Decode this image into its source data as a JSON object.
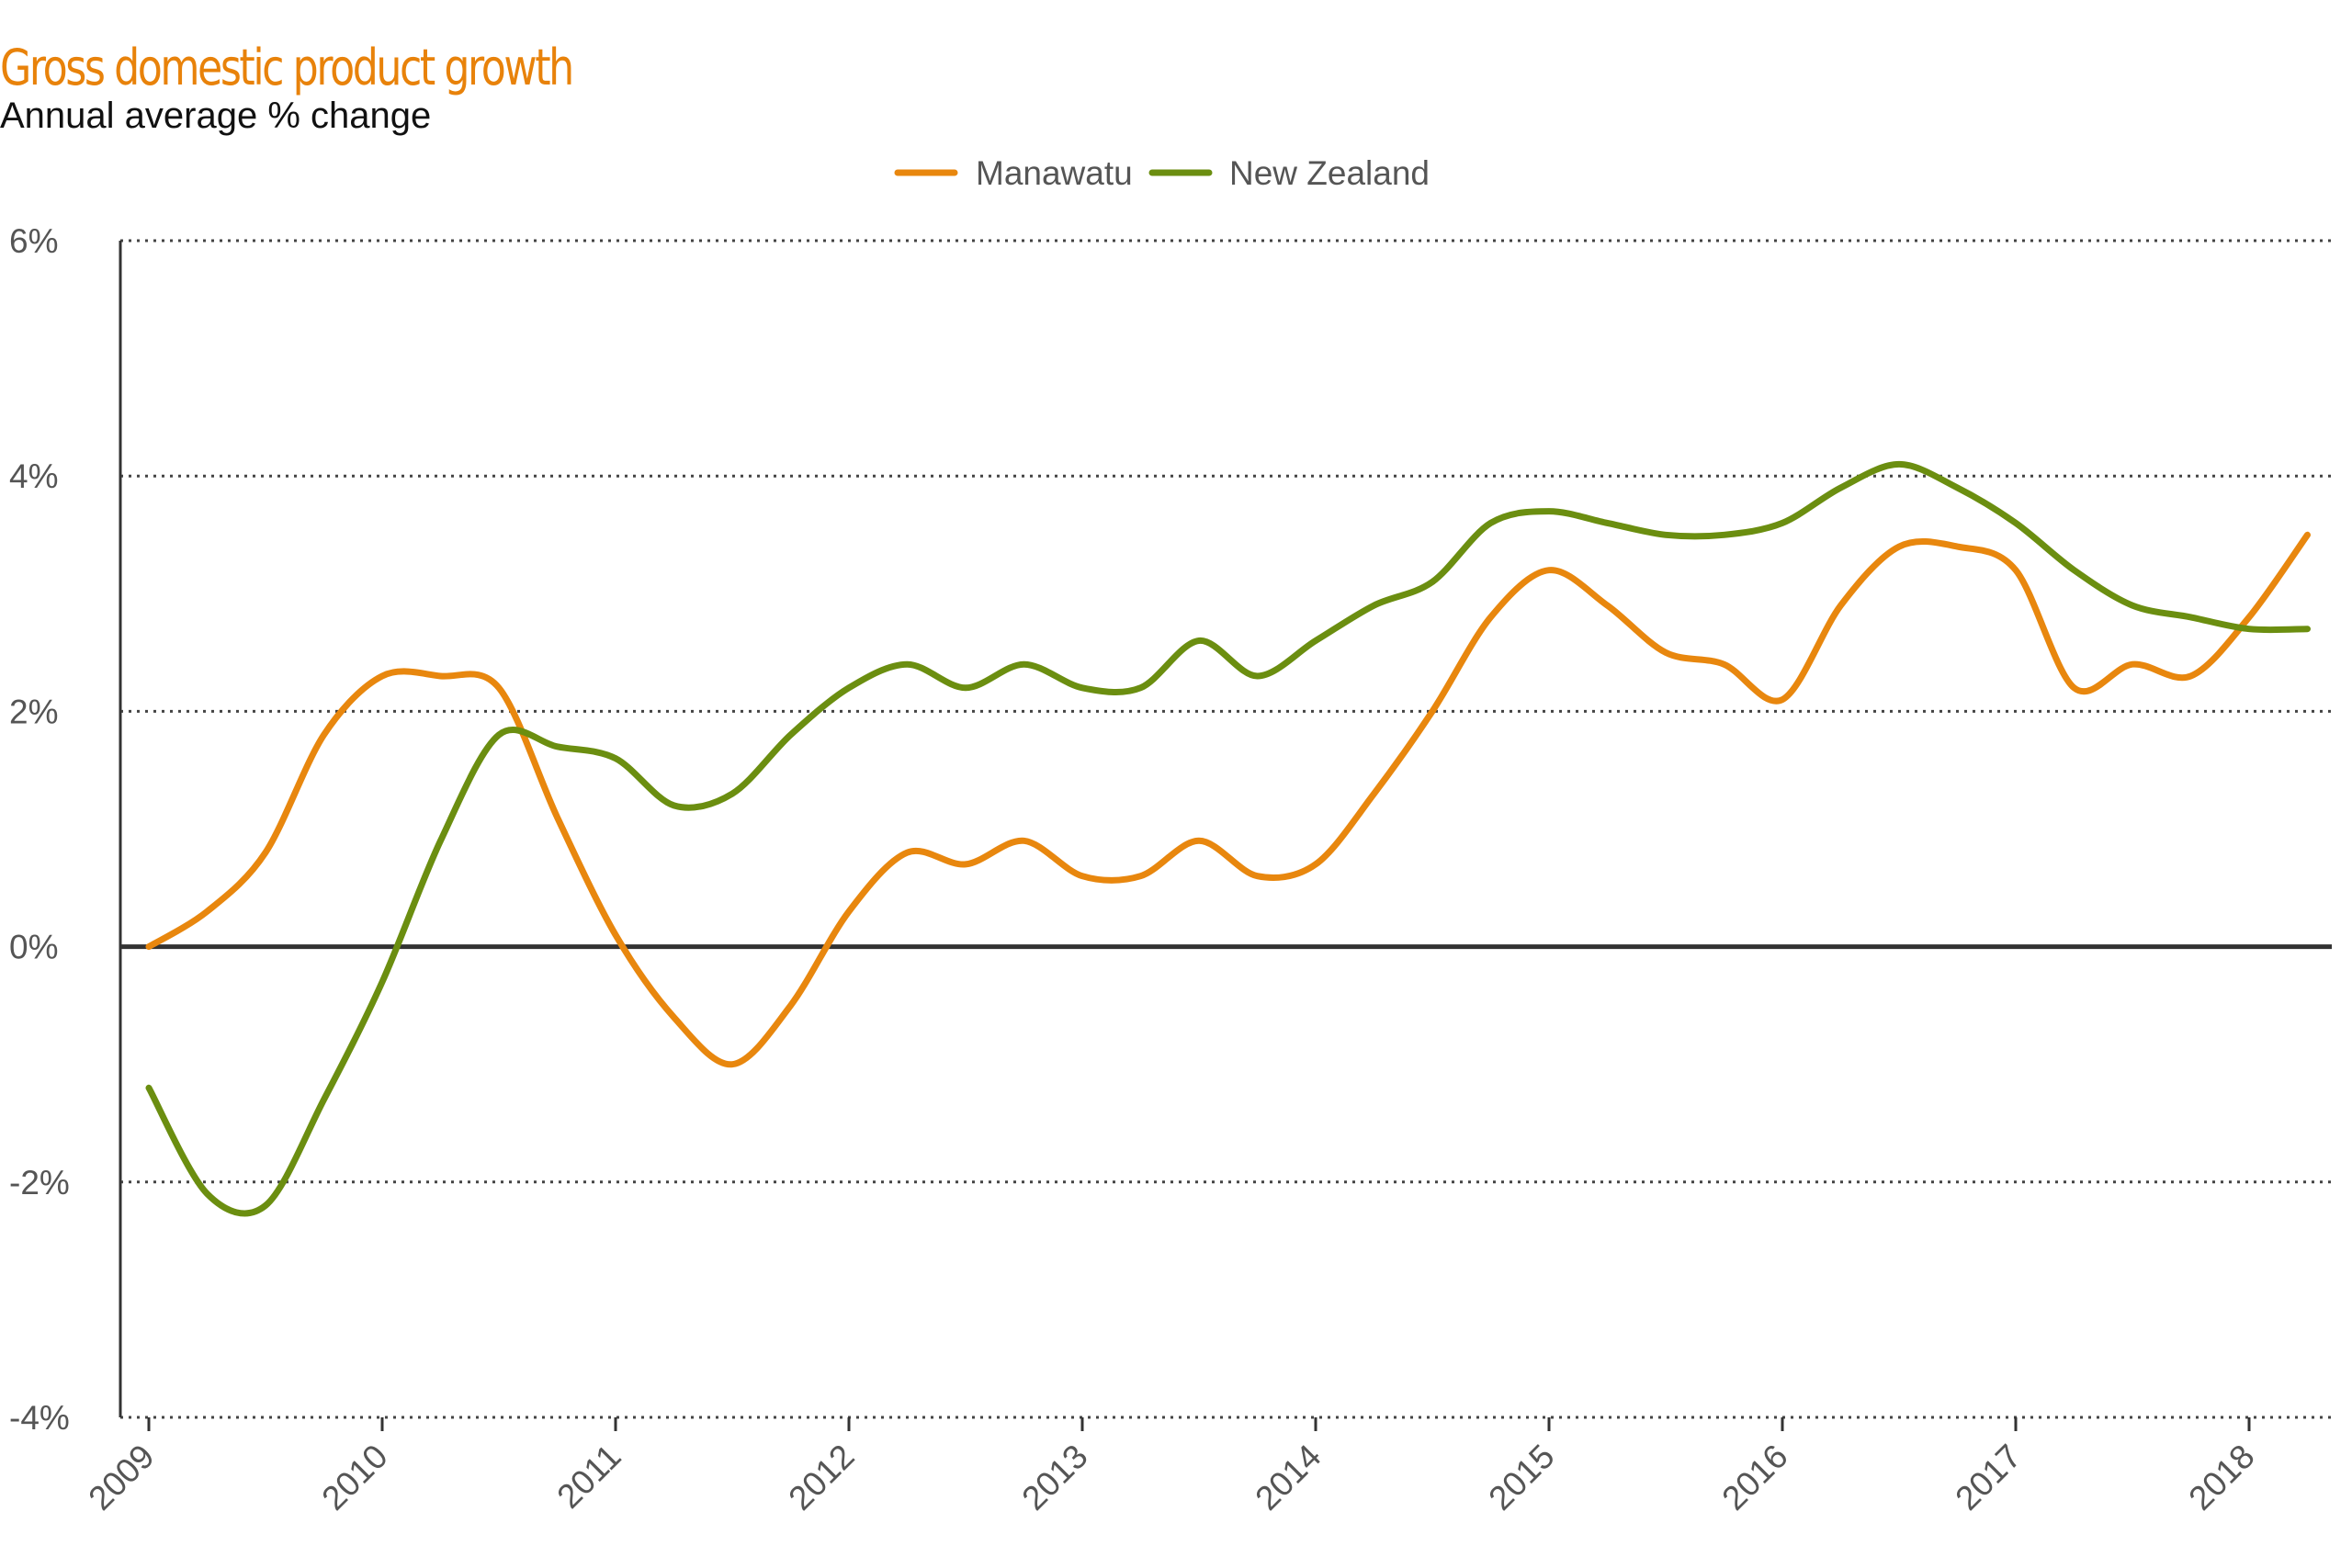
{
  "title": "Gross domestic product growth",
  "subtitle": "Annual average % change",
  "colors": {
    "manawatu": "#e8870e",
    "new_zealand": "#6b8e10",
    "title": "#e8820a",
    "axis": "#333333",
    "grid": "#444444"
  },
  "chart_data": {
    "type": "line",
    "title": "Gross domestic product growth",
    "subtitle": "Annual average % change",
    "xlabel": "",
    "ylabel": "",
    "xlim": [
      2009,
      2018.3
    ],
    "ylim": [
      -4,
      6
    ],
    "y_ticks": [
      6,
      4,
      2,
      0,
      -2,
      -4
    ],
    "y_tick_labels": [
      "6%",
      "4%",
      "2%",
      "0%",
      "-2%",
      "-4%"
    ],
    "x_ticks": [
      2009,
      2010,
      2011,
      2012,
      2013,
      2014,
      2015,
      2016,
      2017,
      2018
    ],
    "x_tick_labels": [
      "2009",
      "2010",
      "2011",
      "2012",
      "2013",
      "2014",
      "2015",
      "2016",
      "2017",
      "2018"
    ],
    "grid": "horizontal dotted",
    "legend_position": "top-center",
    "series": [
      {
        "name": "Manawatu",
        "color": "#e8870e",
        "points": [
          [
            2009.0,
            0.0
          ],
          [
            2009.25,
            0.3
          ],
          [
            2009.5,
            0.8
          ],
          [
            2009.75,
            1.8
          ],
          [
            2010.0,
            2.3
          ],
          [
            2010.25,
            2.3
          ],
          [
            2010.5,
            2.2
          ],
          [
            2010.75,
            1.1
          ],
          [
            2011.0,
            0.1
          ],
          [
            2011.25,
            -0.6
          ],
          [
            2011.5,
            -1.0
          ],
          [
            2011.75,
            -0.5
          ],
          [
            2012.0,
            0.3
          ],
          [
            2012.25,
            0.8
          ],
          [
            2012.5,
            0.7
          ],
          [
            2012.75,
            0.9
          ],
          [
            2013.0,
            0.6
          ],
          [
            2013.25,
            0.6
          ],
          [
            2013.5,
            0.9
          ],
          [
            2013.75,
            0.6
          ],
          [
            2014.0,
            0.7
          ],
          [
            2014.25,
            1.3
          ],
          [
            2014.5,
            2.0
          ],
          [
            2014.75,
            2.8
          ],
          [
            2015.0,
            3.2
          ],
          [
            2015.25,
            2.9
          ],
          [
            2015.5,
            2.5
          ],
          [
            2015.75,
            2.4
          ],
          [
            2016.0,
            2.1
          ],
          [
            2016.25,
            2.9
          ],
          [
            2016.5,
            3.4
          ],
          [
            2016.75,
            3.4
          ],
          [
            2017.0,
            3.2
          ],
          [
            2017.25,
            2.2
          ],
          [
            2017.5,
            2.4
          ],
          [
            2017.75,
            2.3
          ],
          [
            2018.0,
            2.8
          ],
          [
            2018.25,
            3.5
          ]
        ]
      },
      {
        "name": "New Zealand",
        "color": "#6b8e10",
        "points": [
          [
            2009.0,
            -1.2
          ],
          [
            2009.25,
            -2.1
          ],
          [
            2009.5,
            -2.2
          ],
          [
            2009.75,
            -1.3
          ],
          [
            2010.0,
            -0.3
          ],
          [
            2010.25,
            0.9
          ],
          [
            2010.5,
            1.8
          ],
          [
            2010.75,
            1.7
          ],
          [
            2011.0,
            1.6
          ],
          [
            2011.25,
            1.2
          ],
          [
            2011.5,
            1.3
          ],
          [
            2011.75,
            1.8
          ],
          [
            2012.0,
            2.2
          ],
          [
            2012.25,
            2.4
          ],
          [
            2012.5,
            2.2
          ],
          [
            2012.75,
            2.4
          ],
          [
            2013.0,
            2.2
          ],
          [
            2013.25,
            2.2
          ],
          [
            2013.5,
            2.6
          ],
          [
            2013.75,
            2.3
          ],
          [
            2014.0,
            2.6
          ],
          [
            2014.25,
            2.9
          ],
          [
            2014.5,
            3.1
          ],
          [
            2014.75,
            3.6
          ],
          [
            2015.0,
            3.7
          ],
          [
            2015.25,
            3.6
          ],
          [
            2015.5,
            3.5
          ],
          [
            2015.75,
            3.5
          ],
          [
            2016.0,
            3.6
          ],
          [
            2016.25,
            3.9
          ],
          [
            2016.5,
            4.1
          ],
          [
            2016.75,
            3.9
          ],
          [
            2017.0,
            3.6
          ],
          [
            2017.25,
            3.2
          ],
          [
            2017.5,
            2.9
          ],
          [
            2017.75,
            2.8
          ],
          [
            2018.0,
            2.7
          ],
          [
            2018.25,
            2.7
          ]
        ]
      }
    ]
  }
}
